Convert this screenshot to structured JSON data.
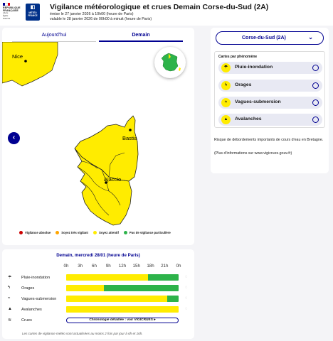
{
  "header": {
    "republic": [
      "RÉPUBLIQUE",
      "FRANÇAISE"
    ],
    "motto": [
      "Liberté",
      "Égalité",
      "Fraternité"
    ],
    "meteo_logo": [
      "MÉTÉO",
      "FRANCE"
    ],
    "title": "Vigilance météorologique et crues Demain Corse-du-Sud  (2A)",
    "emitted": "émise le 27 janvier 2026 à 10h00 (heure de Paris)",
    "valid": "valable le 28 janvier 2026 de 00h00 à minuit (heure de Paris)"
  },
  "map": {
    "tabs": [
      "Aujourd'hui",
      "Demain"
    ],
    "active_tab": "Demain",
    "cities": [
      "Nice",
      "Bastia",
      "Ajaccio"
    ],
    "region_color": "#ffec00",
    "legend": [
      {
        "label": "Vigilance absolue",
        "color": "#cc0000"
      },
      {
        "label": "Soyez très vigilant",
        "color": "#ffa500"
      },
      {
        "label": "Soyez attentif",
        "color": "#ffec00"
      },
      {
        "label": "Pas de vigilance particulière",
        "color": "#2db34a"
      }
    ]
  },
  "sidebar": {
    "department": "Corse-du-Sud  (2A)",
    "cards_title": "Cartes par phénomène",
    "phenomena": [
      {
        "label": "Pluie-inondation",
        "icon": "rain-flood-icon"
      },
      {
        "label": "Orages",
        "icon": "thunderstorm-icon"
      },
      {
        "label": "Vagues-submersion",
        "icon": "waves-icon"
      },
      {
        "label": "Avalanches",
        "icon": "avalanche-icon"
      }
    ],
    "info": "Risque de débordements importants de cours d'eau en Bretagne.",
    "info_link": "(Plus d'informations sur www.vigicrues.gouv.fr)"
  },
  "timeline": {
    "title": "Demain, mercredi 28/01 (heure de Paris)",
    "hours": [
      "0h",
      "3h",
      "6h",
      "9h",
      "12h",
      "15h",
      "18h",
      "21h",
      "0h"
    ],
    "rows": [
      {
        "label": "Pluie-inondation",
        "icon": "rain-flood-icon",
        "segments": [
          {
            "from": 0,
            "to": 17.5,
            "color": "#ffec00"
          },
          {
            "from": 17.5,
            "to": 24,
            "color": "#2db34a"
          }
        ]
      },
      {
        "label": "Orages",
        "icon": "thunderstorm-icon",
        "segments": [
          {
            "from": 0,
            "to": 8,
            "color": "#ffec00"
          },
          {
            "from": 8,
            "to": 24,
            "color": "#2db34a"
          }
        ]
      },
      {
        "label": "Vagues-submersion",
        "icon": "waves-icon",
        "segments": [
          {
            "from": 0,
            "to": 21.5,
            "color": "#ffec00"
          },
          {
            "from": 21.5,
            "to": 24,
            "color": "#2db34a"
          }
        ]
      },
      {
        "label": "Avalanches",
        "icon": "avalanche-icon",
        "segments": [
          {
            "from": 0,
            "to": 24,
            "color": "#ffec00"
          }
        ]
      }
    ],
    "crues_label": "Crues",
    "chrono_label": "Chronologie détaillée : voir",
    "vigicrues": "VIGICRUES",
    "note": "Les cartes de vigilance météo sont actualisées au moins 2 fois par jour à 6h et 16h."
  }
}
